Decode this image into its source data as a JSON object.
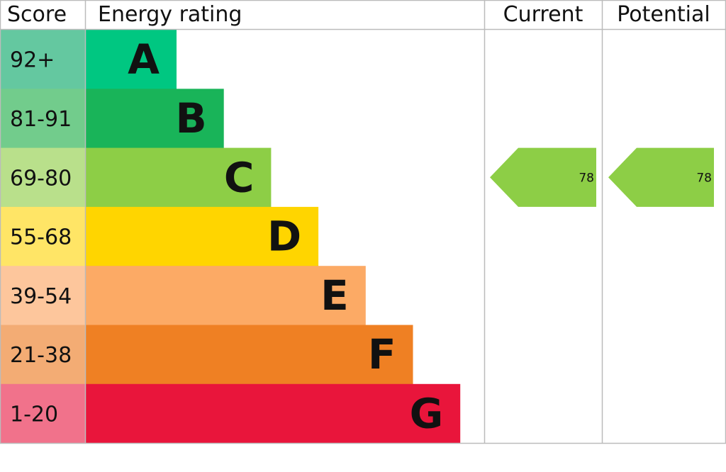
{
  "chart_data": {
    "type": "bar",
    "headers": {
      "score": "Score",
      "rating": "Energy rating",
      "current": "Current",
      "potential": "Potential"
    },
    "bands": [
      {
        "letter": "A",
        "range": "92+",
        "color": "#00c781",
        "light": "#64c8a0"
      },
      {
        "letter": "B",
        "range": "81-91",
        "color": "#19b459",
        "light": "#72cc8c"
      },
      {
        "letter": "C",
        "range": "69-80",
        "color": "#8dce46",
        "light": "#b9e08b"
      },
      {
        "letter": "D",
        "range": "55-68",
        "color": "#ffd500",
        "light": "#ffe566"
      },
      {
        "letter": "E",
        "range": "39-54",
        "color": "#fcaa65",
        "light": "#fdc69c"
      },
      {
        "letter": "F",
        "range": "21-38",
        "color": "#ef8023",
        "light": "#f3ac74"
      },
      {
        "letter": "G",
        "range": "1-20",
        "color": "#e9153b",
        "light": "#f1728b"
      }
    ],
    "current": {
      "value": "78",
      "band": "C"
    },
    "potential": {
      "value": "78",
      "band": "C"
    }
  }
}
